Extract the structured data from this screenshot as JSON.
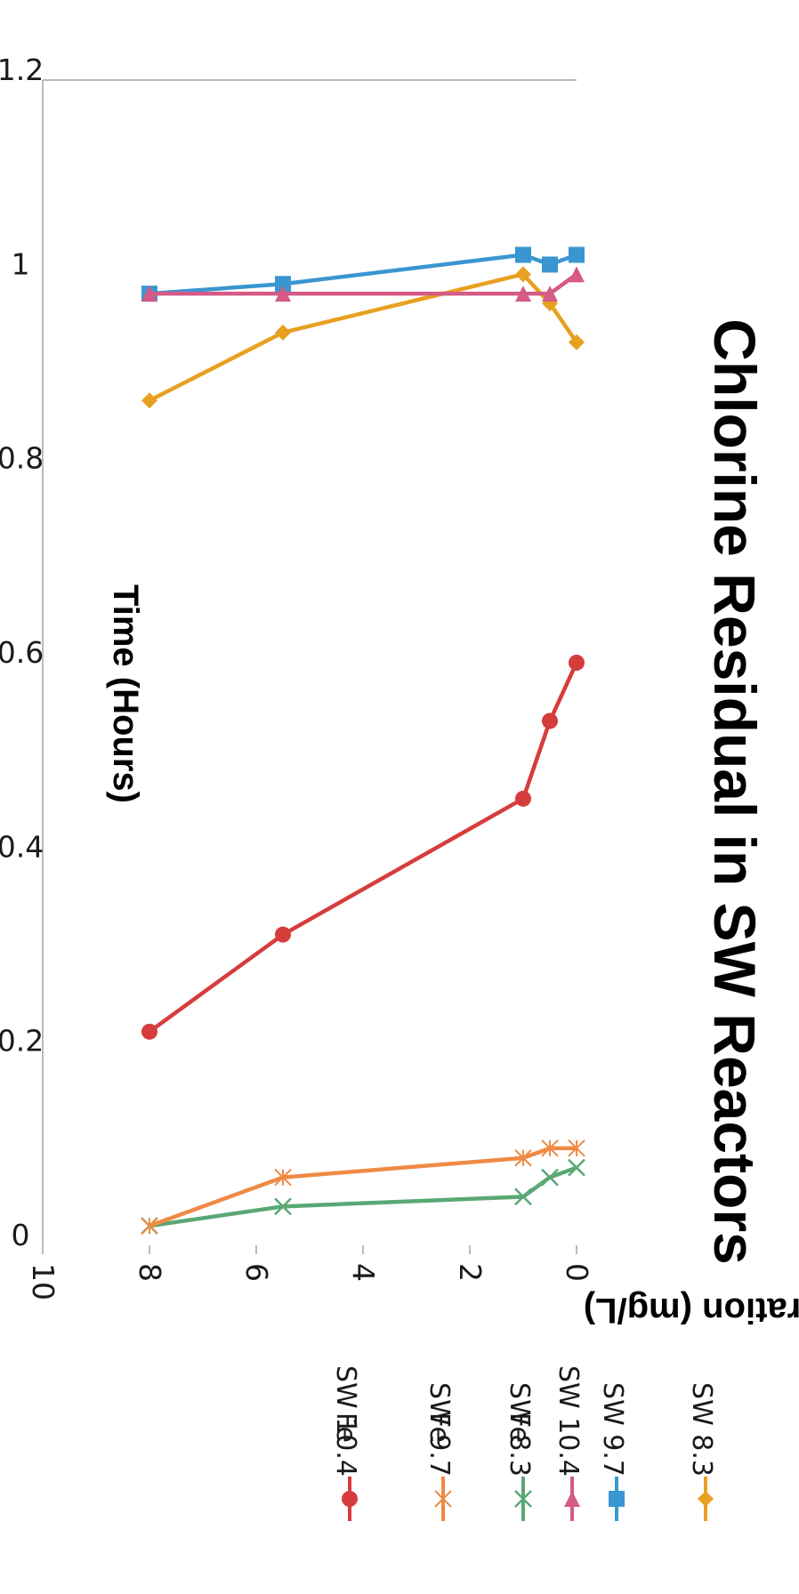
{
  "chart_data": {
    "type": "line",
    "title": "Chlorine Residual in SW Reactors",
    "xlabel": "Time (Hours)",
    "ylabel": "Concentration (mg/L)",
    "xlim": [
      0,
      10
    ],
    "ylim": [
      0,
      1.2
    ],
    "x_ticks": [
      "0",
      "2",
      "4",
      "6",
      "8",
      "10"
    ],
    "y_ticks": [
      "0",
      "0.2",
      "0.4",
      "0.6",
      "0.8",
      "1",
      "1.2"
    ],
    "grid": false,
    "legend_position": "right",
    "orientation": "rotated 90 degrees clockwise",
    "series": [
      {
        "name": "SW 8.3",
        "color": "#e8a020",
        "marker": "diamond",
        "x": [
          0,
          0.5,
          1,
          5.5,
          8
        ],
        "y": [
          0.93,
          0.97,
          1.0,
          0.94,
          0.87
        ]
      },
      {
        "name": "SW 9.7",
        "color": "#3a96d0",
        "marker": "square",
        "x": [
          0,
          0.5,
          1,
          5.5,
          8
        ],
        "y": [
          1.02,
          1.01,
          1.02,
          0.99,
          0.98
        ]
      },
      {
        "name": "SW 10.4",
        "color": "#d65a86",
        "marker": "triangle",
        "x": [
          0,
          0.5,
          1,
          5.5,
          8
        ],
        "y": [
          1.0,
          0.98,
          0.98,
          0.98,
          0.98
        ]
      },
      {
        "name": "SW 8.3 Fe",
        "color": "#5aa874",
        "marker": "x",
        "x": [
          0,
          0.5,
          1,
          5.5,
          8
        ],
        "y": [
          0.08,
          0.07,
          0.05,
          0.04,
          0.02
        ]
      },
      {
        "name": "SW 9.7 Fe",
        "color": "#ef8a44",
        "marker": "star",
        "x": [
          0,
          0.5,
          1,
          5.5,
          8
        ],
        "y": [
          0.1,
          0.1,
          0.09,
          0.07,
          0.02
        ]
      },
      {
        "name": "SW 10.4 Fe",
        "color": "#d63c3c",
        "marker": "circle",
        "x": [
          0,
          0.5,
          1,
          5.5,
          8
        ],
        "y": [
          0.6,
          0.54,
          0.46,
          0.32,
          0.22
        ]
      }
    ],
    "legend": [
      {
        "lines": [
          "SW 8.3"
        ]
      },
      {
        "lines": [
          "SW 9.7"
        ]
      },
      {
        "lines": [
          "SW 10.4"
        ]
      },
      {
        "lines": [
          "SW 8.3",
          "Fe"
        ]
      },
      {
        "lines": [
          "SW 9.7",
          "Fe"
        ]
      },
      {
        "lines": [
          "SW 10.4",
          "Fe"
        ]
      }
    ]
  }
}
